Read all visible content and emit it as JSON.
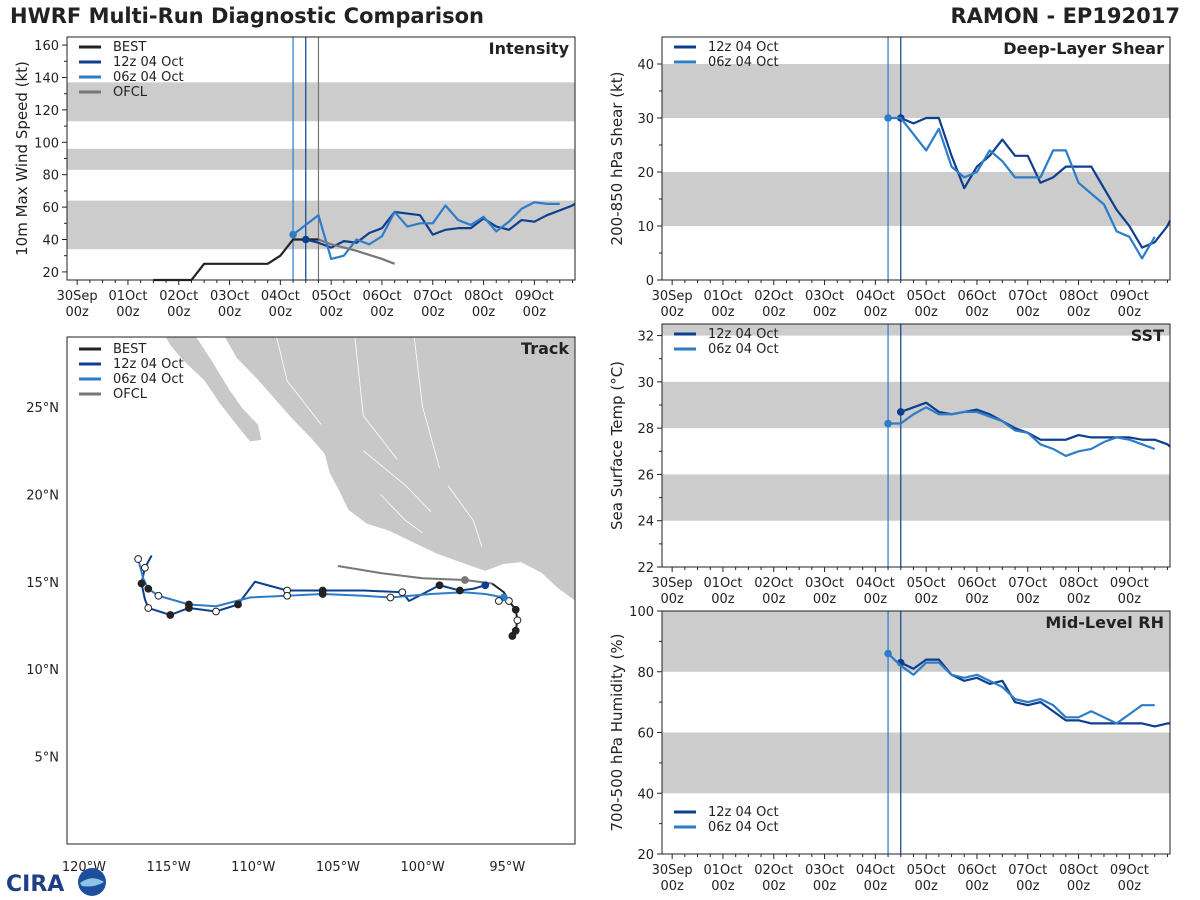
{
  "header": {
    "left_title": "HWRF Multi-Run Diagnostic Comparison",
    "right_title": "RAMON - EP192017"
  },
  "colors": {
    "best": "#222222",
    "run12": "#0d3f8f",
    "run06": "#2e7cc7",
    "ofcl": "#777777",
    "band": "#cccccc",
    "land": "#c8c8c8"
  },
  "time_axis": {
    "tick_labels": [
      [
        "30Sep",
        "00z"
      ],
      [
        "01Oct",
        "00z"
      ],
      [
        "02Oct",
        "00z"
      ],
      [
        "03Oct",
        "00z"
      ],
      [
        "04Oct",
        "00z"
      ],
      [
        "05Oct",
        "00z"
      ],
      [
        "06Oct",
        "00z"
      ],
      [
        "07Oct",
        "00z"
      ],
      [
        "08Oct",
        "00z"
      ],
      [
        "09Oct",
        "00z"
      ]
    ],
    "range_days": [
      -0.2,
      9.8
    ],
    "init_lines_days": [
      4.25,
      4.5,
      4.75
    ]
  },
  "logo_text": "CIRA",
  "chart_data": [
    {
      "id": "intensity",
      "type": "line",
      "title": "Intensity",
      "ylabel": "10m Max Wind Speed (kt)",
      "ylim": [
        15,
        165
      ],
      "yticks": [
        20,
        40,
        60,
        80,
        100,
        120,
        140,
        160
      ],
      "bands": [
        [
          34,
          64
        ],
        [
          83,
          96
        ],
        [
          113,
          137
        ]
      ],
      "legend": [
        "BEST",
        "12z 04 Oct",
        "06z 04 Oct",
        "OFCL"
      ],
      "series": [
        {
          "name": "BEST",
          "color_key": "best",
          "x": [
            1.5,
            1.75,
            2.0,
            2.25,
            2.5,
            2.75,
            3.0,
            3.25,
            3.5,
            3.75,
            4.0,
            4.25,
            4.5,
            4.75
          ],
          "y": [
            15,
            15,
            15,
            15,
            25,
            25,
            25,
            25,
            25,
            25,
            30,
            40,
            40,
            40
          ],
          "start_marker": false
        },
        {
          "name": "12z 04 Oct",
          "color_key": "run12",
          "x": [
            4.5,
            4.75,
            5.0,
            5.25,
            5.5,
            5.75,
            6.0,
            6.25,
            6.5,
            6.75,
            7.0,
            7.25,
            7.5,
            7.75,
            8.0,
            8.25,
            8.5,
            8.75,
            9.0,
            9.25,
            9.5,
            9.75,
            9.8
          ],
          "y": [
            40,
            38,
            35,
            39,
            38,
            44,
            47,
            57,
            56,
            55,
            43,
            46,
            47,
            47,
            53,
            48,
            46,
            52,
            51,
            55,
            58,
            61,
            62
          ],
          "start_marker": true
        },
        {
          "name": "06z 04 Oct",
          "color_key": "run06",
          "x": [
            4.25,
            4.5,
            4.75,
            5.0,
            5.25,
            5.5,
            5.75,
            6.0,
            6.25,
            6.5,
            6.75,
            7.0,
            7.25,
            7.5,
            7.75,
            8.0,
            8.25,
            8.5,
            8.75,
            9.0,
            9.25,
            9.5
          ],
          "y": [
            43,
            49,
            55,
            28,
            30,
            40,
            37,
            42,
            57,
            48,
            50,
            50,
            61,
            52,
            49,
            54,
            45,
            51,
            59,
            63,
            62,
            62
          ],
          "start_marker": true
        },
        {
          "name": "OFCL",
          "color_key": "ofcl",
          "x": [
            4.75,
            5.0,
            5.5,
            6.0,
            6.25
          ],
          "y": [
            40,
            37,
            33,
            28,
            25
          ],
          "start_marker": false
        }
      ]
    },
    {
      "id": "shear",
      "type": "line",
      "title": "Deep-Layer Shear",
      "ylabel": "200-850 hPa Shear (kt)",
      "ylim": [
        0,
        45
      ],
      "yticks": [
        0,
        10,
        20,
        30,
        40
      ],
      "bands": [
        [
          10,
          20
        ],
        [
          30,
          40
        ]
      ],
      "legend": [
        "12z 04 Oct",
        "06z 04 Oct"
      ],
      "series": [
        {
          "name": "12z 04 Oct",
          "color_key": "run12",
          "x": [
            4.5,
            4.75,
            5.0,
            5.25,
            5.5,
            5.75,
            6.0,
            6.25,
            6.5,
            6.75,
            7.0,
            7.25,
            7.5,
            7.75,
            8.0,
            8.25,
            8.5,
            8.75,
            9.0,
            9.25,
            9.5,
            9.75,
            9.8
          ],
          "y": [
            30,
            29,
            30,
            30,
            23,
            17,
            21,
            23,
            26,
            23,
            23,
            18,
            19,
            21,
            21,
            21,
            17,
            13,
            10,
            6,
            7,
            10,
            11
          ],
          "start_marker": true
        },
        {
          "name": "06z 04 Oct",
          "color_key": "run06",
          "x": [
            4.25,
            4.5,
            4.75,
            5.0,
            5.25,
            5.5,
            5.75,
            6.0,
            6.25,
            6.5,
            6.75,
            7.0,
            7.25,
            7.5,
            7.75,
            8.0,
            8.25,
            8.5,
            8.75,
            9.0,
            9.25,
            9.5
          ],
          "y": [
            30,
            30,
            27,
            24,
            28,
            21,
            19,
            20,
            24,
            22,
            19,
            19,
            19,
            24,
            24,
            18,
            16,
            14,
            9,
            8,
            4,
            8
          ],
          "start_marker": true
        }
      ]
    },
    {
      "id": "sst",
      "type": "line",
      "title": "SST",
      "ylabel": "Sea Surface Temp (°C)",
      "ylim": [
        22,
        32.5
      ],
      "yticks": [
        22,
        24,
        26,
        28,
        30,
        32
      ],
      "bands": [
        [
          24,
          26
        ],
        [
          28,
          30
        ],
        [
          32,
          32.5
        ]
      ],
      "legend": [
        "12z 04 Oct",
        "06z 04 Oct"
      ],
      "series": [
        {
          "name": "12z 04 Oct",
          "color_key": "run12",
          "x": [
            4.5,
            4.75,
            5.0,
            5.25,
            5.5,
            5.75,
            6.0,
            6.25,
            6.5,
            6.75,
            7.0,
            7.25,
            7.5,
            7.75,
            8.0,
            8.25,
            8.5,
            8.75,
            9.0,
            9.25,
            9.5,
            9.75,
            9.8
          ],
          "y": [
            28.7,
            28.9,
            29.1,
            28.7,
            28.6,
            28.7,
            28.8,
            28.6,
            28.3,
            28.0,
            27.8,
            27.5,
            27.5,
            27.5,
            27.7,
            27.6,
            27.6,
            27.6,
            27.6,
            27.5,
            27.5,
            27.3,
            27.2
          ],
          "start_marker": true
        },
        {
          "name": "06z 04 Oct",
          "color_key": "run06",
          "x": [
            4.25,
            4.5,
            4.75,
            5.0,
            5.25,
            5.5,
            5.75,
            6.0,
            6.25,
            6.5,
            6.75,
            7.0,
            7.25,
            7.5,
            7.75,
            8.0,
            8.25,
            8.5,
            8.75,
            9.0,
            9.25,
            9.5
          ],
          "y": [
            28.2,
            28.2,
            28.6,
            28.9,
            28.6,
            28.6,
            28.7,
            28.7,
            28.5,
            28.3,
            27.9,
            27.8,
            27.3,
            27.1,
            26.8,
            27.0,
            27.1,
            27.4,
            27.6,
            27.5,
            27.3,
            27.1
          ],
          "start_marker": true
        }
      ]
    },
    {
      "id": "rh",
      "type": "line",
      "title": "Mid-Level RH",
      "ylabel": "700-500 hPa Humidity (%)",
      "ylim": [
        20,
        100
      ],
      "yticks": [
        20,
        40,
        60,
        80,
        100
      ],
      "bands": [
        [
          40,
          60
        ],
        [
          80,
          100
        ]
      ],
      "legend": [
        "12z 04 Oct",
        "06z 04 Oct"
      ],
      "series": [
        {
          "name": "12z 04 Oct",
          "color_key": "run12",
          "x": [
            4.5,
            4.75,
            5.0,
            5.25,
            5.5,
            5.75,
            6.0,
            6.25,
            6.5,
            6.75,
            7.0,
            7.25,
            7.5,
            7.75,
            8.0,
            8.25,
            8.5,
            8.75,
            9.0,
            9.25,
            9.5,
            9.75,
            9.8
          ],
          "y": [
            83,
            81,
            84,
            84,
            79,
            77,
            78,
            76,
            77,
            70,
            69,
            70,
            67,
            64,
            64,
            63,
            63,
            63,
            63,
            63,
            62,
            63,
            63
          ],
          "start_marker": true
        },
        {
          "name": "06z 04 Oct",
          "color_key": "run06",
          "x": [
            4.25,
            4.5,
            4.75,
            5.0,
            5.25,
            5.5,
            5.75,
            6.0,
            6.25,
            6.5,
            6.75,
            7.0,
            7.25,
            7.5,
            7.75,
            8.0,
            8.25,
            8.5,
            8.75,
            9.0,
            9.25,
            9.5
          ],
          "y": [
            86,
            82,
            79,
            83,
            83,
            79,
            78,
            79,
            77,
            75,
            71,
            70,
            71,
            69,
            65,
            65,
            67,
            65,
            63,
            66,
            69,
            69
          ],
          "start_marker": true
        }
      ]
    },
    {
      "id": "track",
      "type": "scatter",
      "title": "Track",
      "xlim": [
        -121,
        -91
      ],
      "ylim": [
        0,
        29
      ],
      "x_ticks": [
        [
          -120,
          "120°W"
        ],
        [
          -115,
          "115°W"
        ],
        [
          -110,
          "110°W"
        ],
        [
          -105,
          "105°W"
        ],
        [
          -100,
          "100°W"
        ],
        [
          -95,
          "95°W"
        ]
      ],
      "y_ticks": [
        [
          5,
          "5°N"
        ],
        [
          10,
          "10°N"
        ],
        [
          15,
          "15°N"
        ],
        [
          20,
          "20°N"
        ],
        [
          25,
          "25°N"
        ]
      ],
      "legend": [
        "BEST",
        "12z 04 Oct",
        "06z 04 Oct",
        "OFCL"
      ],
      "series": [
        {
          "name": "BEST",
          "color_key": "best",
          "points": [
            [
              -94.7,
              11.9
            ],
            [
              -94.5,
              12.2
            ],
            [
              -94.4,
              12.8
            ],
            [
              -94.5,
              13.4
            ],
            [
              -94.9,
              13.9
            ],
            [
              -95.2,
              14.4
            ],
            [
              -95.9,
              14.9
            ]
          ],
          "markers": [
            [
              -94.7,
              11.9,
              1
            ],
            [
              -94.5,
              12.2,
              1
            ],
            [
              -94.4,
              12.8,
              0
            ],
            [
              -94.5,
              13.4,
              1
            ],
            [
              -94.9,
              13.9,
              0
            ]
          ]
        },
        {
          "name": "12z 04 Oct",
          "color_key": "run12",
          "points": [
            [
              -96.3,
              14.8
            ],
            [
              -97.0,
              14.6
            ],
            [
              -97.8,
              14.5
            ],
            [
              -99.0,
              14.8
            ],
            [
              -100.8,
              13.9
            ],
            [
              -101.2,
              14.4
            ],
            [
              -103.5,
              14.5
            ],
            [
              -105.9,
              14.5
            ],
            [
              -108.0,
              14.5
            ],
            [
              -109.9,
              15.0
            ],
            [
              -110.9,
              13.7
            ],
            [
              -112.2,
              13.3
            ],
            [
              -113.8,
              13.5
            ],
            [
              -114.9,
              13.1
            ],
            [
              -116.2,
              13.5
            ],
            [
              -116.4,
              14.0
            ],
            [
              -116.6,
              14.9
            ],
            [
              -116.4,
              15.8
            ],
            [
              -116.0,
              16.5
            ]
          ],
          "markers": [
            [
              -96.3,
              14.8,
              2
            ],
            [
              -97.8,
              14.5,
              1
            ],
            [
              -99.0,
              14.8,
              1
            ],
            [
              -101.2,
              14.4,
              0
            ],
            [
              -105.9,
              14.5,
              1
            ],
            [
              -108.0,
              14.5,
              0
            ],
            [
              -110.9,
              13.7,
              1
            ],
            [
              -112.2,
              13.3,
              0
            ],
            [
              -113.8,
              13.5,
              1
            ],
            [
              -114.9,
              13.1,
              1
            ],
            [
              -116.2,
              13.5,
              0
            ],
            [
              -116.6,
              14.9,
              1
            ],
            [
              -116.4,
              15.8,
              0
            ]
          ]
        },
        {
          "name": "06z 04 Oct",
          "color_key": "run06",
          "points": [
            [
              -95.2,
              14.1
            ],
            [
              -96.3,
              14.3
            ],
            [
              -97.6,
              14.4
            ],
            [
              -99.5,
              14.3
            ],
            [
              -101.9,
              14.1
            ],
            [
              -103.5,
              14.2
            ],
            [
              -105.9,
              14.3
            ],
            [
              -108.0,
              14.2
            ],
            [
              -110.2,
              14.1
            ],
            [
              -112.2,
              13.6
            ],
            [
              -113.8,
              13.7
            ],
            [
              -115.6,
              14.2
            ],
            [
              -116.2,
              14.6
            ],
            [
              -116.5,
              15.2
            ],
            [
              -116.8,
              16.3
            ]
          ],
          "markers": [
            [
              -95.2,
              14.1,
              2
            ],
            [
              -95.5,
              13.9,
              0
            ],
            [
              -101.9,
              14.1,
              0
            ],
            [
              -105.9,
              14.3,
              1
            ],
            [
              -108.0,
              14.2,
              0
            ],
            [
              -113.8,
              13.7,
              1
            ],
            [
              -115.6,
              14.2,
              0
            ],
            [
              -116.2,
              14.6,
              1
            ],
            [
              -116.8,
              16.3,
              0
            ]
          ]
        },
        {
          "name": "OFCL",
          "color_key": "ofcl",
          "points": [
            [
              -95.9,
              14.9
            ],
            [
              -97.5,
              15.1
            ],
            [
              -100.0,
              15.2
            ],
            [
              -102.5,
              15.5
            ],
            [
              -105.0,
              15.9
            ]
          ],
          "markers": [
            [
              -97.5,
              15.1,
              3
            ]
          ]
        }
      ]
    }
  ]
}
